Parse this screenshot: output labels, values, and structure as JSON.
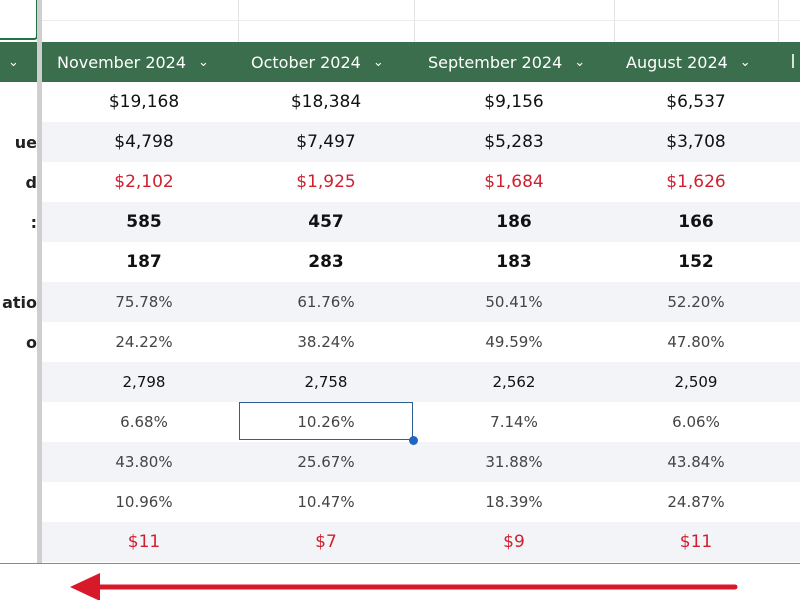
{
  "columns": [
    {
      "label": "November 2024"
    },
    {
      "label": "October 2024"
    },
    {
      "label": "September 2024"
    },
    {
      "label": "August 2024"
    }
  ],
  "chevron_glyph": "⌄",
  "row_labels": [
    "",
    "ue",
    "d",
    ":",
    "",
    "atio",
    "o",
    "",
    "",
    "",
    "",
    ""
  ],
  "rows": [
    {
      "style": "money",
      "values": [
        "$19,168",
        "$18,384",
        "$9,156",
        "$6,537"
      ]
    },
    {
      "style": "money",
      "values": [
        "$4,798",
        "$7,497",
        "$5,283",
        "$3,708"
      ]
    },
    {
      "style": "red",
      "values": [
        "$2,102",
        "$1,925",
        "$1,684",
        "$1,626"
      ]
    },
    {
      "style": "bold",
      "values": [
        "585",
        "457",
        "186",
        "166"
      ]
    },
    {
      "style": "bold",
      "values": [
        "187",
        "283",
        "183",
        "152"
      ]
    },
    {
      "style": "pct",
      "values": [
        "75.78%",
        "61.76%",
        "50.41%",
        "52.20%"
      ]
    },
    {
      "style": "pct",
      "values": [
        "24.22%",
        "38.24%",
        "49.59%",
        "47.80%"
      ]
    },
    {
      "style": "num",
      "values": [
        "2,798",
        "2,758",
        "2,562",
        "2,509"
      ]
    },
    {
      "style": "pct",
      "values": [
        "6.68%",
        "10.26%",
        "7.14%",
        "6.06%"
      ]
    },
    {
      "style": "pct",
      "values": [
        "43.80%",
        "25.67%",
        "31.88%",
        "43.84%"
      ]
    },
    {
      "style": "pct",
      "values": [
        "10.96%",
        "10.47%",
        "18.39%",
        "24.87%"
      ]
    },
    {
      "style": "red",
      "values": [
        "$11",
        "$7",
        "$9",
        "$11"
      ]
    }
  ],
  "selected_cell": {
    "row": 8,
    "column": 1
  },
  "annotation": {
    "arrow_color": "#d7192a",
    "direction": "left"
  },
  "colors": {
    "header_bg": "#3b6e4c",
    "accent_red": "#d02030",
    "alt_row": "#f3f4f8"
  }
}
